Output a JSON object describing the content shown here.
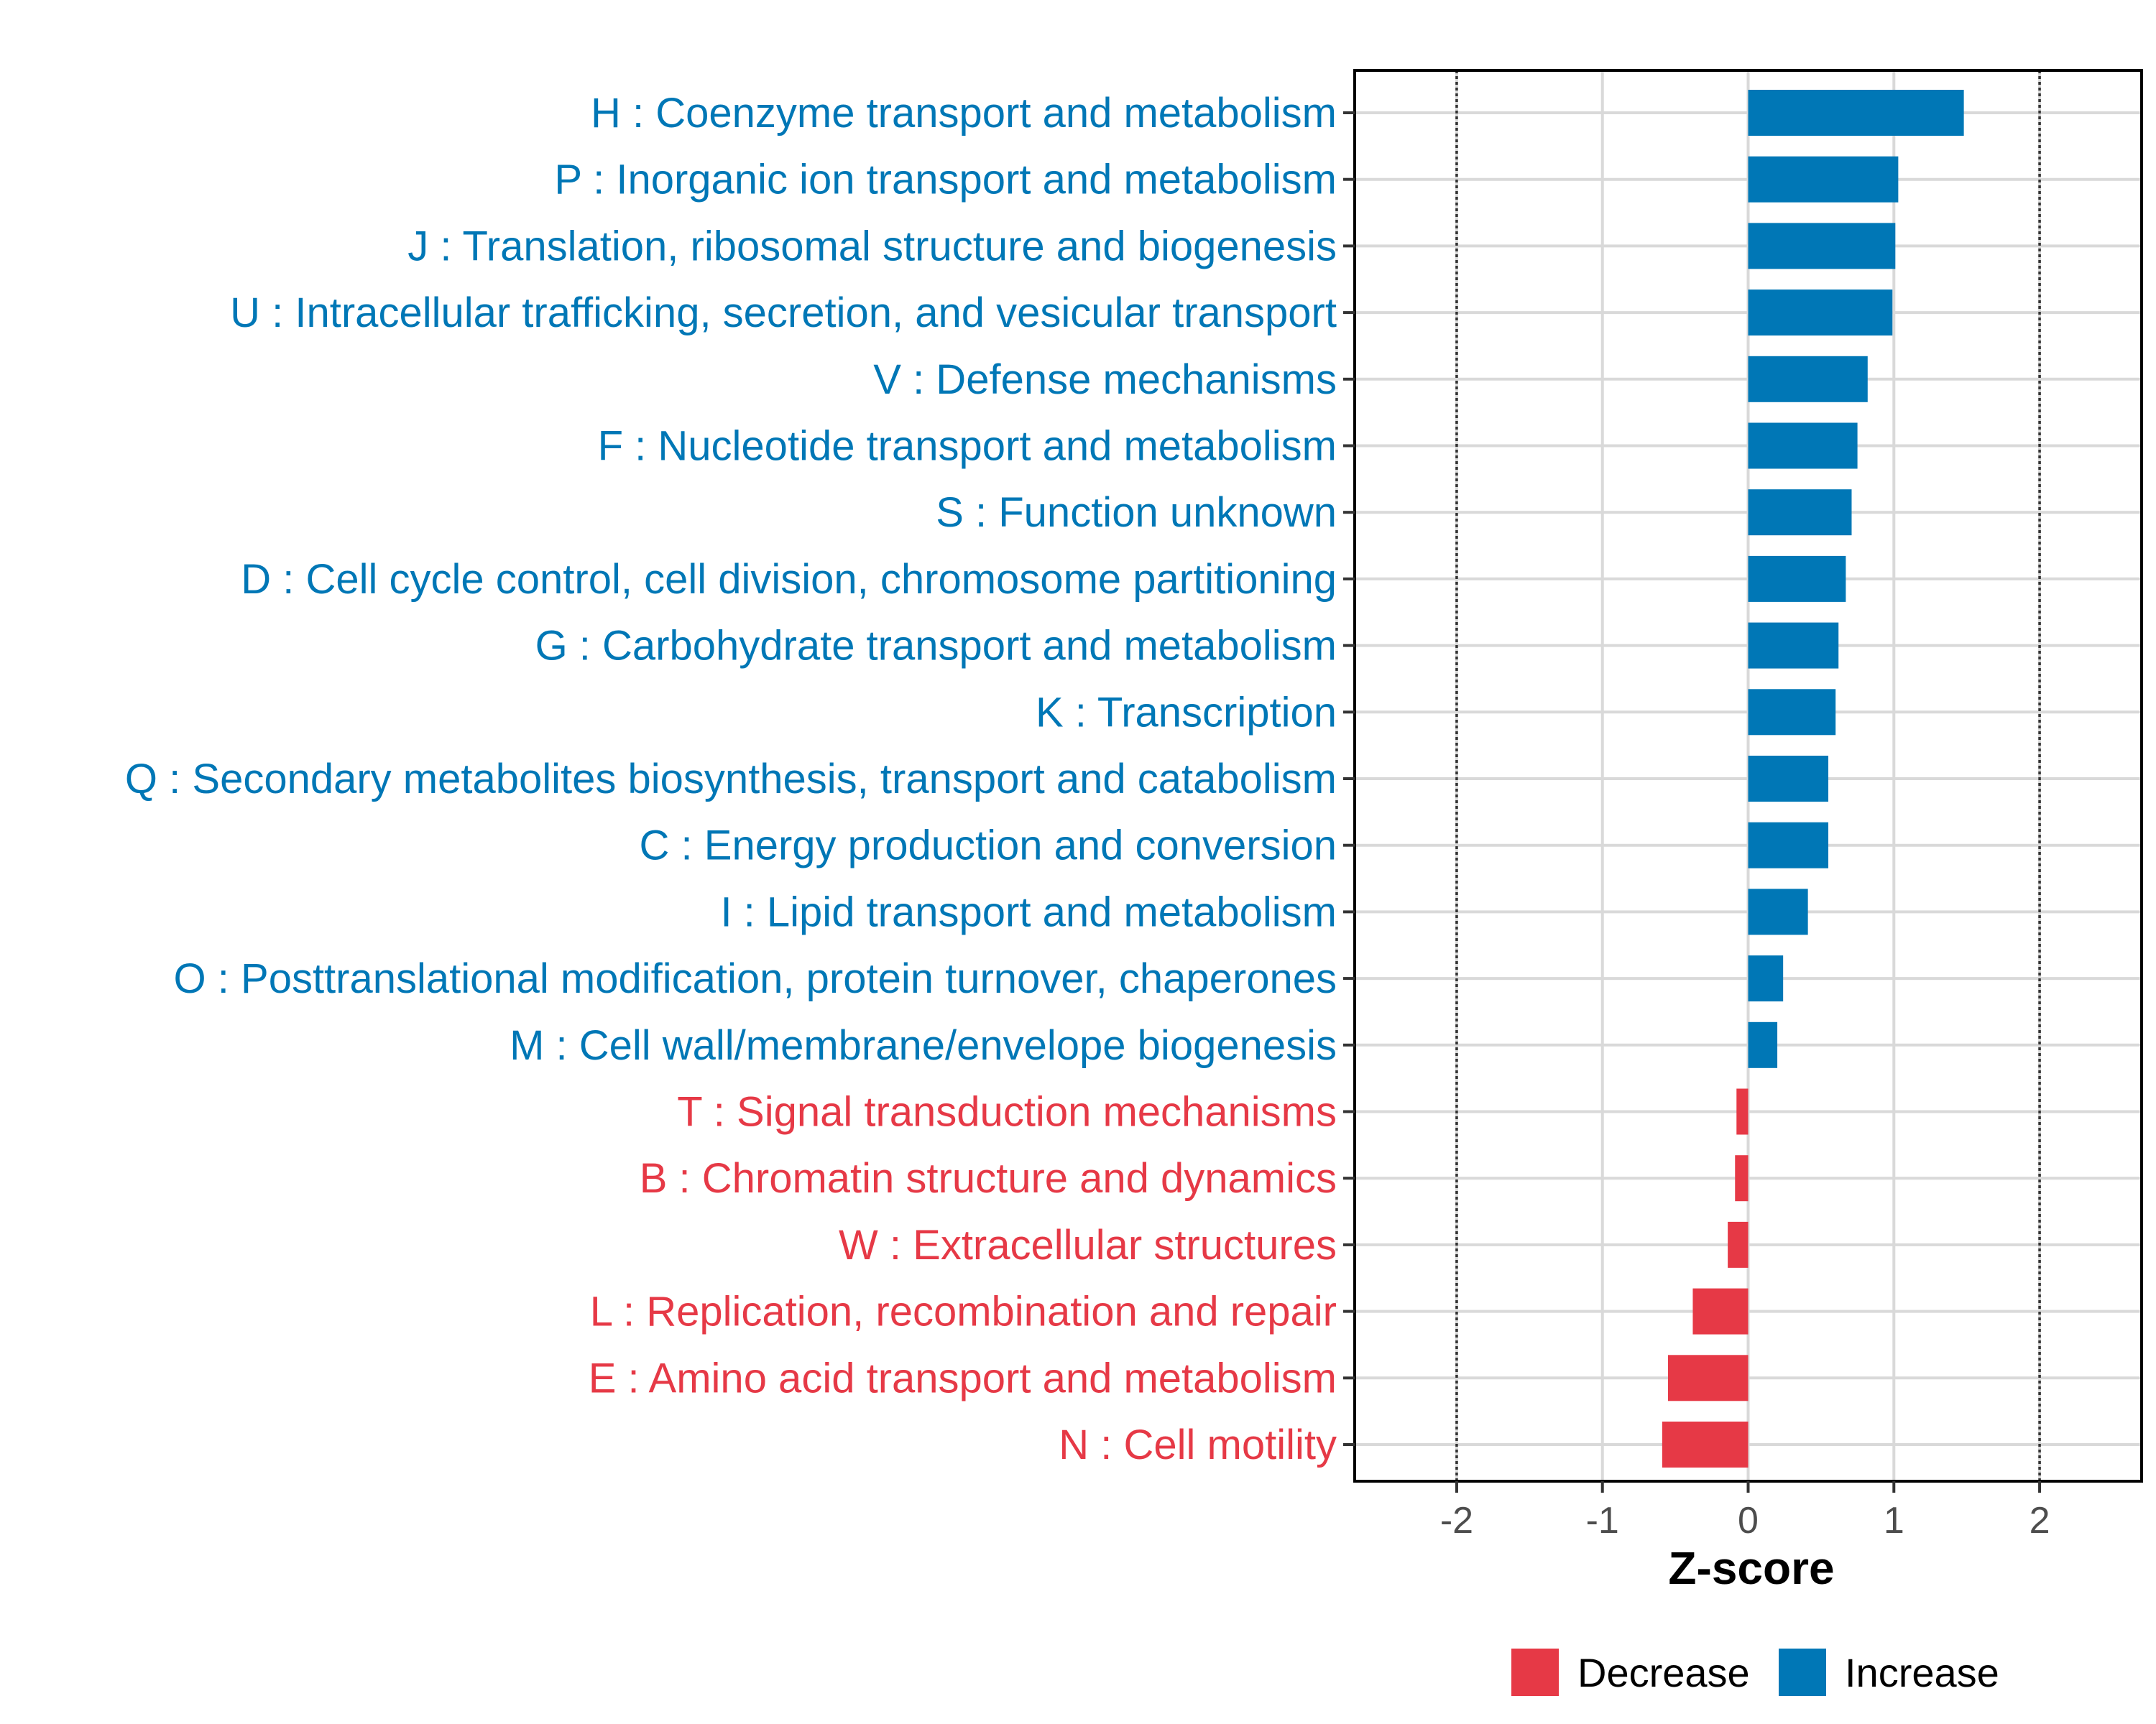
{
  "chart_data": {
    "type": "bar",
    "orientation": "horizontal",
    "title": "",
    "xlabel": "Z-score",
    "ylabel": "",
    "xlim": [
      -2.7,
      2.7
    ],
    "x_ticks": [
      -2,
      -1,
      0,
      1,
      2
    ],
    "x_tick_labels": [
      "-2",
      "-1",
      "0",
      "1",
      "2"
    ],
    "reference_lines": [
      -2,
      2
    ],
    "grid": true,
    "categories": [
      "H : Coenzyme transport and metabolism",
      "P : Inorganic ion transport and metabolism",
      "J : Translation, ribosomal structure and biogenesis",
      "U : Intracellular trafficking, secretion, and vesicular transport",
      "V : Defense mechanisms",
      "F : Nucleotide transport and metabolism",
      "S : Function unknown",
      "D : Cell cycle control, cell division, chromosome partitioning",
      "G : Carbohydrate transport and metabolism",
      "K : Transcription",
      "Q : Secondary metabolites biosynthesis, transport and catabolism",
      "C : Energy production and conversion",
      "I : Lipid transport and metabolism",
      "O : Posttranslational modification, protein turnover, chaperones",
      "M : Cell wall/membrane/envelope biogenesis",
      "T : Signal transduction mechanisms",
      "B : Chromatin structure and dynamics",
      "W : Extracellular structures",
      "L : Replication, recombination and repair",
      "E : Amino acid transport and metabolism",
      "N : Cell motility"
    ],
    "values": [
      1.48,
      1.03,
      1.01,
      0.99,
      0.82,
      0.75,
      0.71,
      0.67,
      0.62,
      0.6,
      0.55,
      0.55,
      0.41,
      0.24,
      0.2,
      -0.08,
      -0.09,
      -0.14,
      -0.38,
      -0.55,
      -0.59
    ],
    "groups": [
      "Increase",
      "Increase",
      "Increase",
      "Increase",
      "Increase",
      "Increase",
      "Increase",
      "Increase",
      "Increase",
      "Increase",
      "Increase",
      "Increase",
      "Increase",
      "Increase",
      "Increase",
      "Decrease",
      "Decrease",
      "Decrease",
      "Decrease",
      "Decrease",
      "Decrease"
    ],
    "legend": [
      {
        "name": "Decrease",
        "color": "#E63946"
      },
      {
        "name": "Increase",
        "color": "#0077B6"
      }
    ],
    "legend_position": "bottom"
  }
}
